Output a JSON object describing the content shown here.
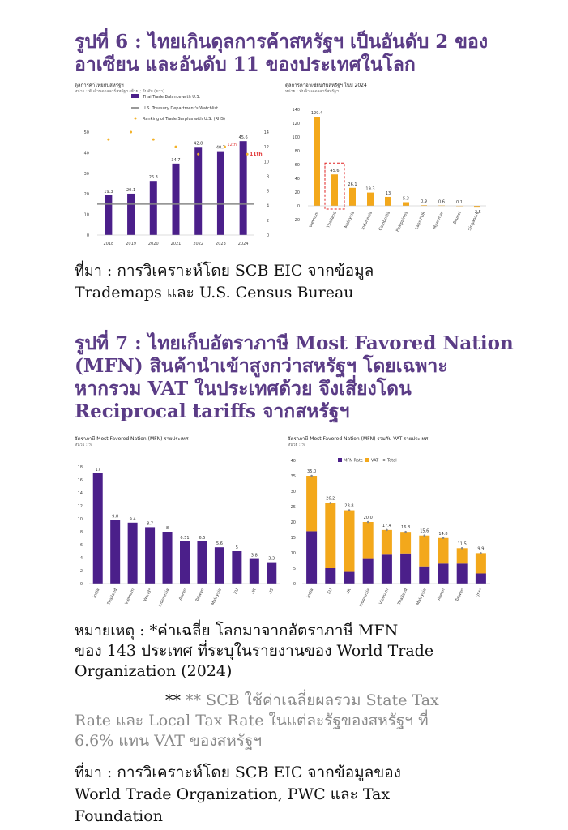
{
  "figure6": {
    "title_line1": "รูปที่ 6 : ไทยเกินดุลการค้าสหรัฐฯ เป็นอันดับ 2 ของ",
    "title_line2": "อาเซียน และอันดับ 11 ของประเทศในโลก",
    "source_lead": "ที่มา",
    "source_line1": ": การวิเคราะห์โดย SCB EIC จากข้อมูล",
    "source_line2": "Trademaps และ U.S. Census Bureau"
  },
  "figure7": {
    "title_line1": "รูปที่ 7 : ไทยเก็บอัตราภาษี Most Favored Nation",
    "title_line2": "(MFN) สินค้านำเข้าสูงกว่าสหรัฐฯ โดยเฉพาะ",
    "title_line3": "หากรวม VAT ในประเทศด้วย จึงเสี่ยงโดน",
    "title_line4": "Reciprocal tariffs จากสหรัฐฯ"
  },
  "notes": {
    "lead": "หมายเหตุ",
    "line1": ": *ค่าเฉลี่ย โลกมาจากอัตราภาษี MFN",
    "line2": "ของ 143 ประเทศ ที่ระบุในรายงานของ World Trade",
    "line3": "Organization (2024)",
    "line4": "** SCB ใช้ค่าเฉลี่ยผลรวม State Tax",
    "line5": "Rate และ Local Tax Rate ในแต่ละรัฐของสหรัฐฯ ที่",
    "line6": "6.6% แทน VAT ของสหรัฐฯ",
    "source_lead": "ที่มา",
    "source_line1": ": การวิเคราะห์โดย SCB EIC จากข้อมูลของ",
    "source_line2": "World Trade Organization, PWC และ Tax",
    "source_line3": "Foundation"
  },
  "chart_data": [
    {
      "type": "bar",
      "title": "ดุลการค้าไทยกับสหรัฐฯ",
      "subtitle": "หน่วย : พันล้านดอลลาร์สหรัฐฯ (ซ้าย); อันดับ (ขวา)",
      "legend": [
        "Thai Trade Balance with U.S.",
        "U.S. Treasury Department's Watchlist",
        "Ranking of Trade Surplus with U.S. (RHS)"
      ],
      "categories": [
        "2018",
        "2019",
        "2020",
        "2021",
        "2022",
        "2023",
        "2024"
      ],
      "values": [
        19.3,
        20.1,
        26.3,
        34.7,
        42.8,
        40.7,
        45.6
      ],
      "ranking": [
        13,
        14,
        13,
        12,
        11,
        12,
        11
      ],
      "rank_labels": [
        "12th",
        "11th"
      ],
      "watchlist_level": 15,
      "ylim": [
        0,
        50
      ],
      "y_ticks": [
        0,
        10,
        20,
        30,
        40,
        50
      ],
      "y2lim": [
        0,
        14
      ],
      "y2_ticks": [
        0,
        2,
        4,
        6,
        8,
        10,
        12,
        14
      ],
      "bar_color": "#4b1f8a",
      "rank_color": "#f3b229"
    },
    {
      "type": "bar",
      "title": "ดุลการค้าอาเซียนกับสหรัฐฯ ในปี 2024",
      "subtitle": "หน่วย : พันล้านดอลลาร์สหรัฐฯ",
      "categories": [
        "Vietnam",
        "Thailand",
        "Malaysia",
        "Indonesia",
        "Cambodia",
        "Philippines",
        "Laos PDR",
        "Myanmar",
        "Brunei",
        "Singapore"
      ],
      "values": [
        129.4,
        45.6,
        26.1,
        19.3,
        13,
        5.3,
        0.9,
        0.6,
        0.1,
        -2.5
      ],
      "value_labels": [
        "129.4",
        "45.6",
        "26.1",
        "19.3",
        "13",
        "5.3",
        "0.9",
        "0.6",
        "0.1",
        "-2.5"
      ],
      "ylim": [
        -20,
        140
      ],
      "y_ticks": [
        -20,
        0,
        20,
        40,
        60,
        80,
        100,
        120,
        140
      ],
      "highlight": "Thailand",
      "bar_color": "#f3a81b"
    },
    {
      "type": "bar",
      "title": "อัตราภาษี Most Favored Nation (MFN) รายประเทศ",
      "subtitle": "หน่วย : %",
      "categories": [
        "India",
        "Thailand",
        "Vietnam",
        "World*",
        "Indonesia",
        "Asean",
        "Taiwan",
        "Malaysia",
        "EU",
        "UK",
        "US"
      ],
      "values": [
        17,
        9.8,
        9.4,
        8.7,
        8,
        6.51,
        6.5,
        5.6,
        5,
        3.8,
        3.3
      ],
      "value_labels": [
        "17",
        "9.8",
        "9.4",
        "8.7",
        "8",
        "6.51",
        "6.5",
        "5.6",
        "5",
        "3.8",
        "3.3"
      ],
      "ylim": [
        0,
        18
      ],
      "y_ticks": [
        0,
        2,
        4,
        6,
        8,
        10,
        12,
        14,
        16,
        18
      ],
      "bar_color": "#4b1f8a"
    },
    {
      "type": "bar",
      "title": "อัตราภาษี Most Favored Nation (MFN) รวมกับ VAT รายประเทศ",
      "subtitle": "หน่วย : %",
      "legend": [
        "MFN Rate",
        "VAT",
        "Total"
      ],
      "categories": [
        "India",
        "EU",
        "UK",
        "Indonesia",
        "Vietnam",
        "Thailand",
        "Malaysia",
        "Asean",
        "Taiwan",
        "US**"
      ],
      "series": [
        {
          "name": "MFN Rate",
          "values": [
            17,
            5,
            3.8,
            8,
            9.4,
            9.8,
            5.6,
            6.5,
            6.5,
            3.3
          ]
        },
        {
          "name": "VAT",
          "values": [
            18,
            21.2,
            20,
            12,
            8,
            7,
            10,
            8.3,
            5,
            6.6
          ]
        },
        {
          "name": "Total",
          "values": [
            35.0,
            26.2,
            23.8,
            20.0,
            17.4,
            16.8,
            15.6,
            14.8,
            11.5,
            9.9
          ]
        }
      ],
      "total_labels": [
        "35.0",
        "26.2",
        "23.8",
        "20.0",
        "17.4",
        "16.8",
        "15.6",
        "14.8",
        "11.5",
        "9.9"
      ],
      "ylim": [
        0,
        40
      ],
      "y_ticks": [
        0,
        5,
        10,
        15,
        20,
        25,
        30,
        35,
        40
      ],
      "colors": {
        "mfn": "#4b1f8a",
        "vat": "#f3a81b",
        "total": "#888888"
      }
    }
  ]
}
